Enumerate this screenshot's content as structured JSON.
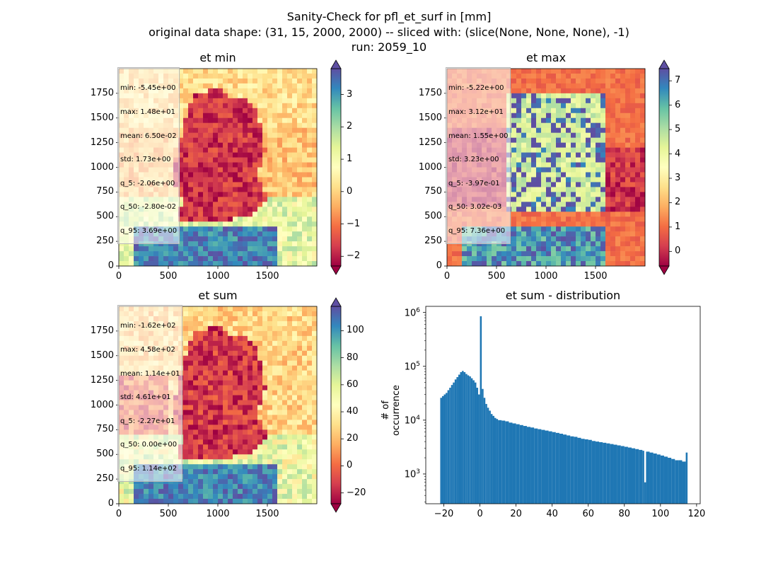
{
  "figure": {
    "title_line1": "Sanity-Check for pfl_et_surf in [mm]",
    "title_line2": "original data shape: (31, 15, 2000, 2000) -- sliced with: (slice(None, None, None), -1)",
    "title_line3": "run: 2059_10"
  },
  "colors": {
    "colormap": [
      "#9e0142",
      "#d53e4f",
      "#f46d43",
      "#fdae61",
      "#fee08b",
      "#ffffbf",
      "#e6f598",
      "#abdda4",
      "#66c2a5",
      "#3288bd",
      "#5e4fa2"
    ],
    "histogram_bar": "#1f77b4"
  },
  "panels": [
    {
      "title": "et min",
      "x_ticks": [
        "0",
        "500",
        "1000",
        "1500"
      ],
      "y_ticks": [
        "0",
        "250",
        "500",
        "750",
        "1000",
        "1250",
        "1500",
        "1750"
      ],
      "colorbar_ticks": [
        "3",
        "2",
        "1",
        "0",
        "−1",
        "−2"
      ],
      "colorbar_range": [
        -2.3,
        3.8
      ],
      "stats": [
        "min: -5.45e+00",
        "max: 1.48e+01",
        "mean: 6.50e-02",
        "std: 1.73e+00",
        "q_5: -2.06e+00",
        "q_50: -2.80e-02",
        "q_95: 3.69e+00"
      ]
    },
    {
      "title": "et max",
      "x_ticks": [
        "0",
        "500",
        "1000",
        "1500"
      ],
      "y_ticks": [
        "0",
        "250",
        "500",
        "750",
        "1000",
        "1250",
        "1500",
        "1750"
      ],
      "colorbar_ticks": [
        "7",
        "6",
        "5",
        "4",
        "3",
        "2",
        "1",
        "0"
      ],
      "colorbar_range": [
        -0.6,
        7.5
      ],
      "stats": [
        "min: -5.22e+00",
        "max: 3.12e+01",
        "mean: 1.55e+00",
        "std: 3.23e+00",
        "q_5: -3.97e-01",
        "q_50: 3.02e-03",
        "q_95: 7.36e+00"
      ]
    },
    {
      "title": "et sum",
      "x_ticks": [
        "0",
        "500",
        "1000",
        "1500"
      ],
      "y_ticks": [
        "0",
        "250",
        "500",
        "750",
        "1000",
        "1250",
        "1500",
        "1750"
      ],
      "colorbar_ticks": [
        "100",
        "80",
        "60",
        "40",
        "20",
        "0",
        "−20"
      ],
      "colorbar_range": [
        -28,
        118
      ],
      "stats": [
        "min: -1.62e+02",
        "max: 4.58e+02",
        "mean: 1.14e+01",
        "std: 4.61e+01",
        "q_5: -2.27e+01",
        "q_50: 0.00e+00",
        "q_95: 1.14e+02"
      ]
    }
  ],
  "chart_data": {
    "type": "bar",
    "title": "et sum - distribution",
    "xlabel": "",
    "ylabel": "# of occurrence",
    "y_scale": "log",
    "xlim": [
      -30,
      122
    ],
    "ylim": [
      280,
      1300000
    ],
    "x_ticks": [
      "−20",
      "0",
      "20",
      "40",
      "60",
      "80",
      "100",
      "120"
    ],
    "y_ticks": [
      "10^3",
      "10^4",
      "10^5",
      "10^6"
    ],
    "x": [
      -22,
      -21,
      -20,
      -19,
      -18,
      -17,
      -16,
      -15,
      -14,
      -13,
      -12,
      -11,
      -10,
      -9,
      -8,
      -7,
      -6,
      -5,
      -4,
      -3,
      -2,
      -1,
      0,
      1,
      2,
      3,
      4,
      5,
      6,
      7,
      8,
      9,
      10,
      12,
      14,
      16,
      18,
      20,
      22,
      24,
      26,
      28,
      30,
      32,
      34,
      36,
      38,
      40,
      42,
      44,
      46,
      48,
      50,
      52,
      54,
      56,
      58,
      60,
      62,
      64,
      66,
      68,
      70,
      72,
      74,
      76,
      78,
      80,
      82,
      84,
      86,
      88,
      90,
      91,
      92,
      94,
      96,
      98,
      100,
      102,
      104,
      106,
      108,
      110,
      112,
      114
    ],
    "values": [
      26000,
      28000,
      30000,
      32000,
      36000,
      40000,
      45000,
      50000,
      57000,
      63000,
      70000,
      78000,
      82000,
      78000,
      72000,
      68000,
      65000,
      60000,
      55000,
      50000,
      40000,
      30000,
      850000,
      38000,
      26000,
      20000,
      17000,
      15000,
      13000,
      12000,
      11000,
      10500,
      10000,
      9800,
      9500,
      9000,
      8700,
      8400,
      8100,
      7800,
      7500,
      7300,
      7000,
      6800,
      6600,
      6400,
      6200,
      6000,
      5800,
      5600,
      5400,
      5200,
      5000,
      4900,
      4700,
      4500,
      4400,
      4300,
      4100,
      4000,
      3900,
      3800,
      3700,
      3600,
      3500,
      3400,
      3300,
      3200,
      3100,
      3000,
      2900,
      2800,
      2700,
      700,
      2600,
      2500,
      2400,
      2300,
      2200,
      2100,
      2000,
      1900,
      1800,
      1800,
      1700,
      2500
    ]
  }
}
